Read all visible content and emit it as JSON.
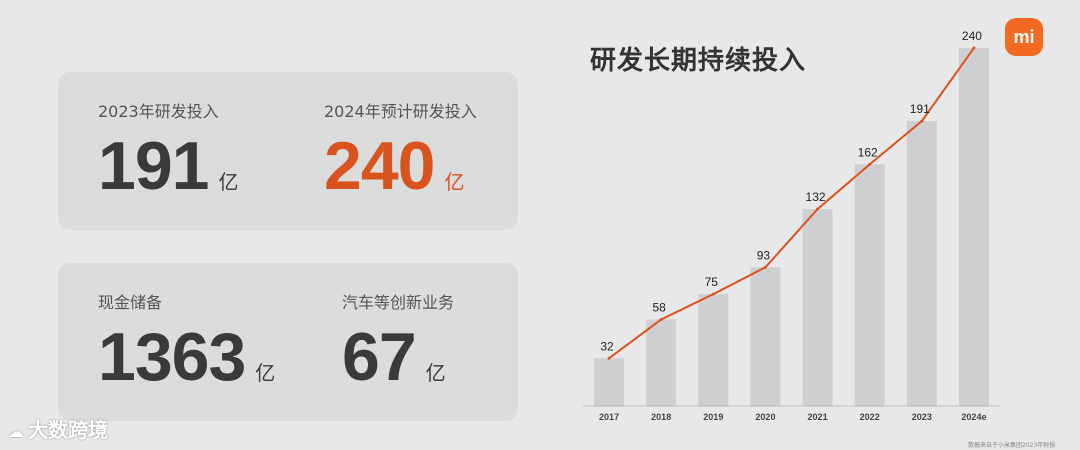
{
  "cards": [
    {
      "stats": [
        {
          "label": "2023年研发投入",
          "value": "191",
          "unit": "亿",
          "accent": false
        },
        {
          "label": "2024年预计研发投入",
          "value": "240",
          "unit": "亿",
          "accent": true
        }
      ]
    },
    {
      "stats": [
        {
          "label": "现金储备",
          "value": "1363",
          "unit": "亿",
          "accent": false
        },
        {
          "label": "汽车等创新业务",
          "value": "67",
          "unit": "亿",
          "accent": false
        }
      ]
    }
  ],
  "logo": {
    "text": "mi",
    "icon": "xiaomi-logo",
    "color": "#f26a21"
  },
  "watermark": {
    "text": "大数跨境",
    "icon": "cloud-logo-icon"
  },
  "source_note": "数据来自于小米集团2023年财报",
  "colors": {
    "accent": "#d9531e",
    "bar": "#cfcfd1",
    "background": "#e8e8e8",
    "card": "#dcdcdc"
  },
  "chart_data": {
    "type": "bar",
    "title": "研发长期持续投入",
    "categories": [
      "2017",
      "2018",
      "2019",
      "2020",
      "2021",
      "2022",
      "2023",
      "2024e"
    ],
    "series": [
      {
        "type": "bar",
        "values": [
          32,
          58,
          75,
          93,
          132,
          162,
          191,
          240
        ]
      },
      {
        "type": "line",
        "values": [
          32,
          58,
          75,
          93,
          132,
          162,
          191,
          240
        ],
        "color": "#d9531e"
      }
    ],
    "data_labels": [
      "32",
      "58",
      "75",
      "93",
      "132",
      "162",
      "191",
      "240"
    ],
    "ylim": [
      0,
      240
    ],
    "grid": false,
    "legend": "none",
    "xlabel": "",
    "ylabel": ""
  }
}
